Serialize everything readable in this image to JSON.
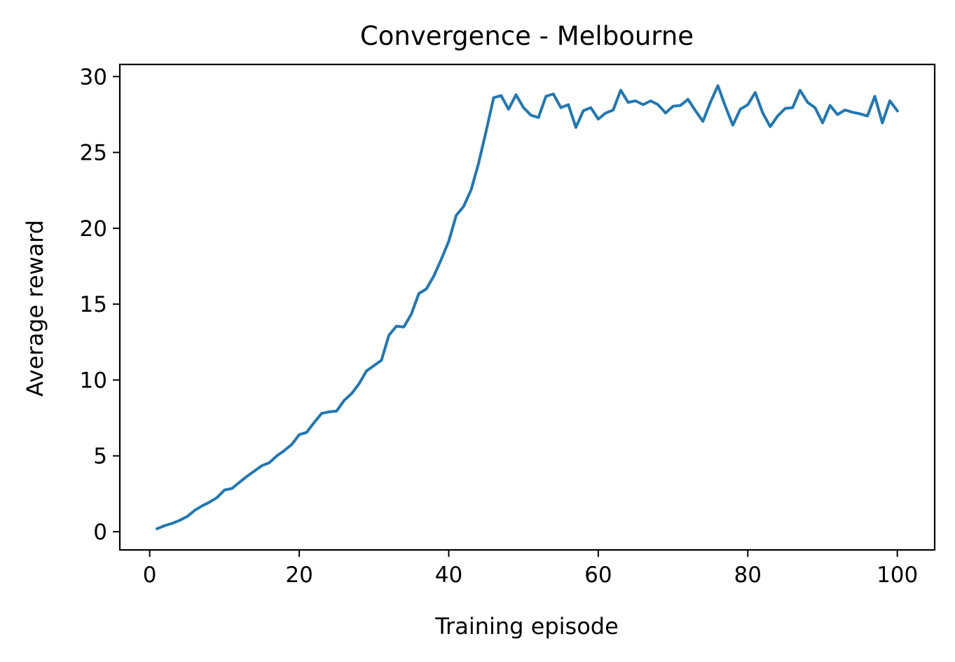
{
  "chart_data": {
    "type": "line",
    "title": "Convergence - Melbourne",
    "xlabel": "Training episode",
    "ylabel": "Average reward",
    "xlim": [
      -4,
      105
    ],
    "ylim": [
      -1.2,
      30.8
    ],
    "xticks": [
      0,
      20,
      40,
      60,
      80,
      100
    ],
    "yticks": [
      0,
      5,
      10,
      15,
      20,
      25,
      30
    ],
    "grid": false,
    "series_color": "#1f77b4",
    "series": [
      {
        "x": [
          1,
          2,
          3,
          4,
          5,
          6,
          7,
          8,
          9,
          10,
          11,
          12,
          13,
          14,
          15,
          16,
          17,
          18,
          19,
          20,
          21,
          22,
          23,
          24,
          25,
          26,
          27,
          28,
          29,
          30,
          31,
          32,
          33,
          34,
          35,
          36,
          37,
          38,
          39,
          40,
          41,
          42,
          43,
          44,
          45,
          46,
          47,
          48,
          49,
          50,
          51,
          52,
          53,
          54,
          55,
          56,
          57,
          58,
          59,
          60,
          61,
          62,
          63,
          64,
          65,
          66,
          67,
          68,
          69,
          70,
          71,
          72,
          73,
          74,
          75,
          76,
          77,
          78,
          79,
          80,
          81,
          82,
          83,
          84,
          85,
          86,
          87,
          88,
          89,
          90,
          91,
          92,
          93,
          94,
          95,
          96,
          97,
          98,
          99,
          100
        ],
        "values": [
          0.2,
          0.4,
          0.55,
          0.75,
          1.0,
          1.4,
          1.7,
          1.95,
          2.25,
          2.75,
          2.85,
          3.25,
          3.65,
          4.0,
          4.35,
          4.55,
          5.0,
          5.35,
          5.75,
          6.4,
          6.55,
          7.2,
          7.8,
          7.9,
          7.95,
          8.65,
          9.1,
          9.75,
          10.6,
          10.95,
          11.3,
          12.95,
          13.55,
          13.5,
          14.35,
          15.7,
          16.0,
          16.85,
          17.95,
          19.15,
          20.85,
          21.45,
          22.55,
          24.3,
          26.4,
          28.6,
          28.75,
          27.85,
          28.8,
          27.95,
          27.45,
          27.3,
          28.7,
          28.85,
          27.95,
          28.15,
          26.65,
          27.75,
          27.95,
          27.2,
          27.6,
          27.8,
          29.1,
          28.3,
          28.4,
          28.15,
          28.4,
          28.15,
          27.6,
          28.05,
          28.1,
          28.5,
          27.75,
          27.05,
          28.3,
          29.4,
          28.05,
          26.8,
          27.85,
          28.15,
          28.95,
          27.6,
          26.7,
          27.4,
          27.9,
          27.95,
          29.1,
          28.3,
          27.95,
          26.95,
          28.1,
          27.5,
          27.8,
          27.65,
          27.55,
          27.4,
          28.7,
          26.95,
          28.4,
          27.75
        ]
      }
    ]
  }
}
